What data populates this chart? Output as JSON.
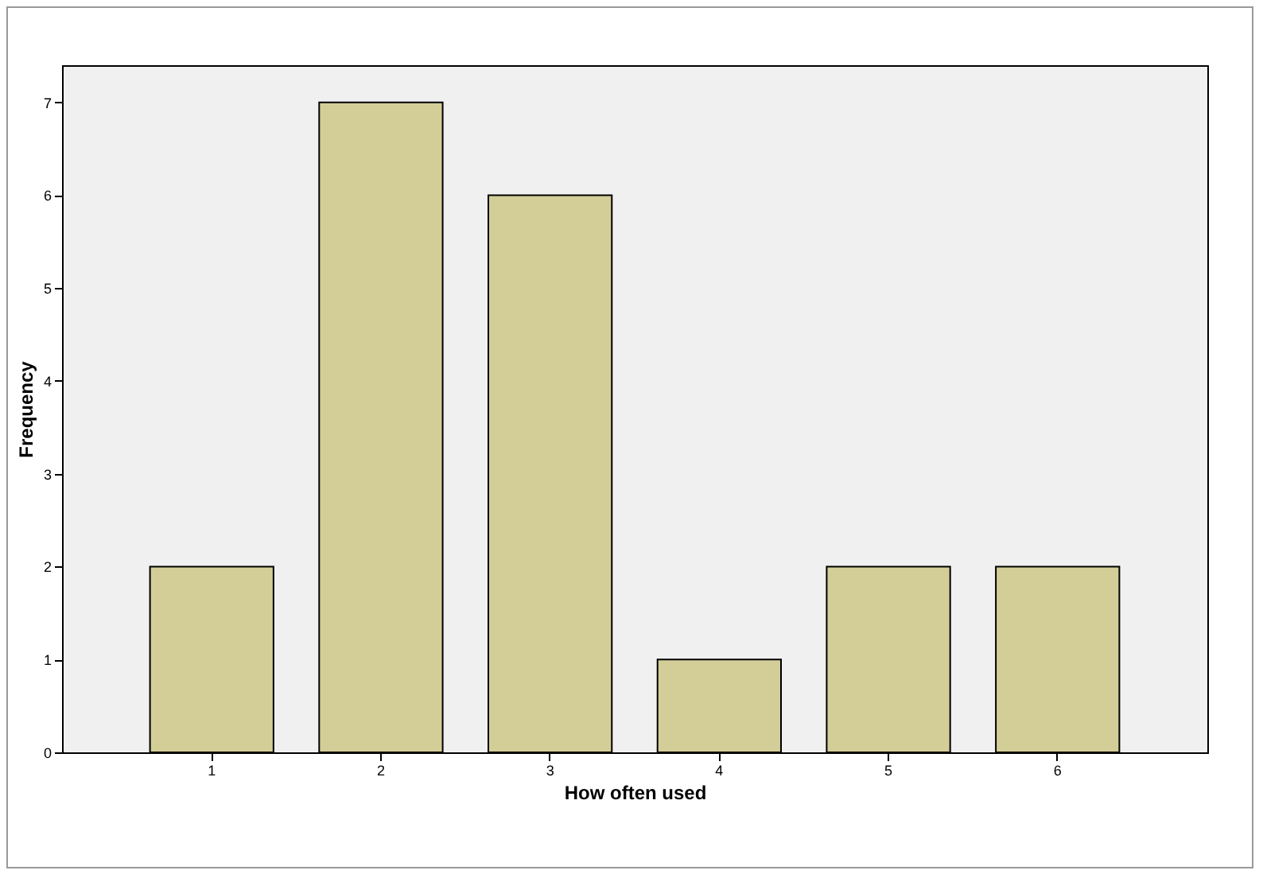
{
  "chart_data": {
    "type": "bar",
    "xlabel": "How often used",
    "ylabel": "Frequency",
    "categories": [
      "1",
      "2",
      "3",
      "4",
      "5",
      "6"
    ],
    "values": [
      2,
      7,
      6,
      1,
      2,
      2
    ],
    "color": "#d3ce98",
    "ylim": [
      0,
      7.4
    ],
    "yticks": [
      0,
      1,
      2,
      3,
      4,
      5,
      6,
      7
    ]
  }
}
